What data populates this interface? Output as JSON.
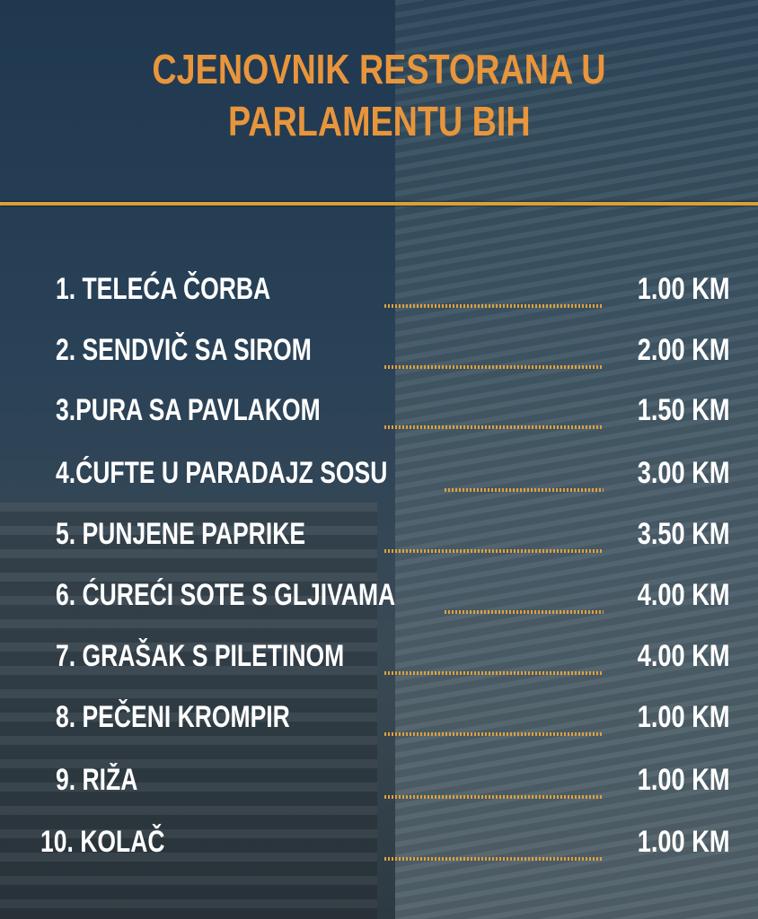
{
  "title": {
    "line1": "CJENOVNIK RESTORANA U",
    "line2": "PARLAMENTU BIH"
  },
  "colors": {
    "title": "#e8953c",
    "rule": "#d8a038",
    "text": "#ffffff"
  },
  "items": [
    {
      "name": "1. TELEĆA ČORBA",
      "price": "1.00 KM"
    },
    {
      "name": "2. SENDVIČ SA SIROM",
      "price": "2.00 KM"
    },
    {
      "name": "3.PURA SA PAVLAKOM",
      "price": "1.50 KM"
    },
    {
      "name": "4.ĆUFTE U PARADAJZ SOSU",
      "price": "3.00 KM"
    },
    {
      "name": "5. PUNJENE PAPRIKE",
      "price": "3.50 KM"
    },
    {
      "name": "6. ĆUREĆI SOTE S GLJIVAMA",
      "price": "4.00 KM"
    },
    {
      "name": "7. GRAŠAK S PILETINOM",
      "price": "4.00 KM"
    },
    {
      "name": "8. PEČENI KROMPIR",
      "price": "1.00 KM"
    },
    {
      "name": "9. RIŽA",
      "price": "1.00 KM"
    },
    {
      "name": "10. KOLAČ",
      "price": "1.00 KM"
    }
  ]
}
